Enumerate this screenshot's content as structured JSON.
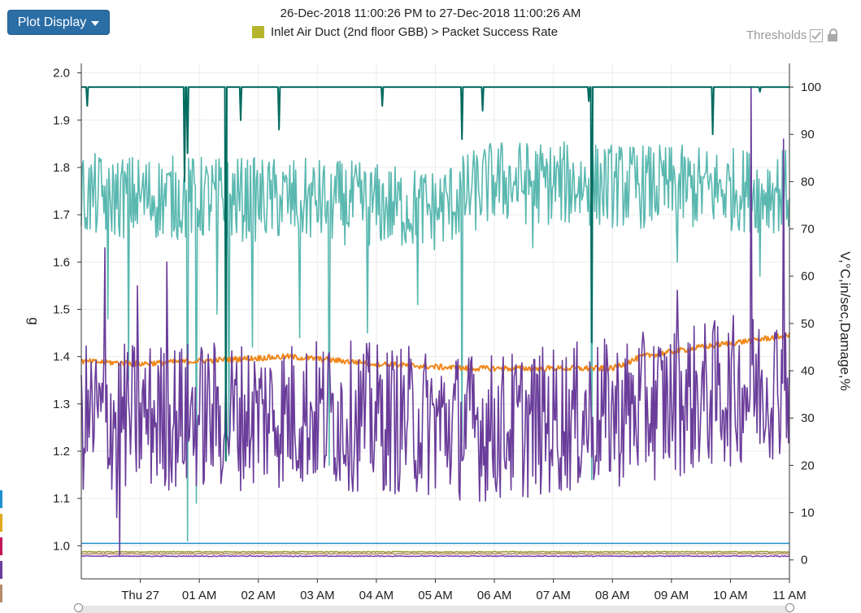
{
  "toolbar": {
    "plot_display_label": "Plot Display"
  },
  "header": {
    "date_range": "26-Dec-2018 11:00:26 PM to 27-Dec-2018 11:00:26 AM",
    "legend_label": "Inlet Air Duct (2nd floor GBB) > Packet Success Rate",
    "legend_color": "#b5b52d",
    "thresholds_label": "Thresholds"
  },
  "left_markers": [
    "#1f8fd1",
    "#e0a81c",
    "#c2185b",
    "#6a3d9a",
    "#b58a6a"
  ],
  "chart_data": {
    "type": "line",
    "x_ticks": [
      "Thu 27",
      "01 AM",
      "02 AM",
      "03 AM",
      "04 AM",
      "05 AM",
      "06 AM",
      "07 AM",
      "08 AM",
      "09 AM",
      "10 AM",
      "11 AM"
    ],
    "x_tick_hours": [
      0,
      1,
      2,
      3,
      4,
      5,
      6,
      7,
      8,
      9,
      10,
      11
    ],
    "x_range_hours": [
      -1,
      11
    ],
    "y_left": {
      "label": "g",
      "ticks": [
        "1.0",
        "1.1",
        "1.2",
        "1.3",
        "1.4",
        "1.5",
        "1.6",
        "1.7",
        "1.8",
        "1.9",
        "2.0"
      ],
      "range": [
        0.93,
        2.02
      ]
    },
    "y_right": {
      "label": "V,°C,in/sec,Damage,%",
      "ticks": [
        "0",
        "10",
        "20",
        "30",
        "40",
        "50",
        "60",
        "70",
        "80",
        "90",
        "100"
      ],
      "range": [
        -4,
        105
      ]
    },
    "grid": true,
    "series": [
      {
        "name": "Packet Success Rate",
        "axis": "right",
        "color": "#006b5f",
        "baseline": 100,
        "dips": [
          [
            -0.9,
            96
          ],
          [
            0.75,
            80
          ],
          [
            0.8,
            86
          ],
          [
            1.45,
            21
          ],
          [
            1.7,
            93
          ],
          [
            2.35,
            91
          ],
          [
            4.1,
            96
          ],
          [
            5.45,
            89
          ],
          [
            5.8,
            95
          ],
          [
            7.65,
            46
          ],
          [
            7.6,
            97
          ],
          [
            9.7,
            90
          ],
          [
            10.5,
            99
          ]
        ]
      },
      {
        "name": "Teal",
        "axis": "right",
        "color": "#5ab8b0",
        "base": [
          [
            -1,
            77
          ],
          [
            3,
            76
          ],
          [
            5,
            74
          ],
          [
            6,
            80
          ],
          [
            11,
            78
          ]
        ],
        "amp": 9,
        "spikes": [
          [
            -0.55,
            51
          ],
          [
            -0.2,
            38
          ],
          [
            0.8,
            4
          ],
          [
            0.95,
            12
          ],
          [
            1.3,
            52
          ],
          [
            1.5,
            22
          ],
          [
            1.9,
            45
          ],
          [
            2.7,
            47
          ],
          [
            3.2,
            20
          ],
          [
            3.85,
            48
          ],
          [
            4.7,
            54
          ],
          [
            5.45,
            25
          ],
          [
            6.65,
            66
          ],
          [
            7.65,
            17
          ],
          [
            9.1,
            63
          ],
          [
            10.5,
            60
          ]
        ]
      },
      {
        "name": "Purple",
        "axis": "right",
        "color": "#6a3d9a",
        "base": [
          [
            -1,
            30
          ],
          [
            3,
            31
          ],
          [
            6,
            28
          ],
          [
            8,
            31
          ],
          [
            11,
            38
          ]
        ],
        "amp": 16,
        "spikes": [
          [
            -0.4,
            9
          ],
          [
            -0.35,
            1
          ],
          [
            0.45,
            63
          ],
          [
            -0.05,
            58
          ],
          [
            9.1,
            57
          ],
          [
            10.35,
            100
          ],
          [
            10.9,
            89
          ],
          [
            -0.6,
            66
          ]
        ]
      },
      {
        "name": "Orange",
        "axis": "right",
        "color": "#f0871a",
        "base": [
          [
            -1,
            42
          ],
          [
            0,
            41.5
          ],
          [
            2.5,
            43
          ],
          [
            4,
            41.5
          ],
          [
            5.5,
            40.5
          ],
          [
            7,
            40.5
          ],
          [
            8,
            40.5
          ],
          [
            8.5,
            43
          ],
          [
            9.5,
            45
          ],
          [
            11,
            47.5
          ]
        ],
        "amp": 0.6
      },
      {
        "name": "Blue",
        "axis": "left",
        "color": "#1f8fd1",
        "flat": 1.005
      },
      {
        "name": "Olive",
        "axis": "left",
        "color": "#9a9a2c",
        "flat": 0.987
      },
      {
        "name": "Brown",
        "axis": "left",
        "color": "#b58a6a",
        "flat": 0.983
      },
      {
        "name": "Violet",
        "axis": "left",
        "color": "#7a3fb0",
        "flat": 0.978
      }
    ]
  }
}
